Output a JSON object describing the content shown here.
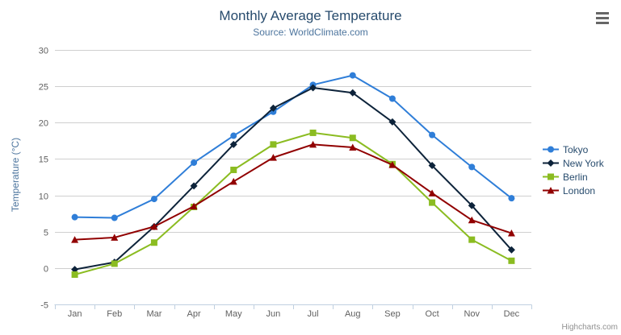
{
  "header": {
    "title": "Monthly Average Temperature",
    "subtitle": "Source: WorldClimate.com"
  },
  "credit": "Highcharts.com",
  "chart_data": {
    "type": "line",
    "title": "Monthly Average Temperature",
    "subtitle": "Source: WorldClimate.com",
    "categories": [
      "Jan",
      "Feb",
      "Mar",
      "Apr",
      "May",
      "Jun",
      "Jul",
      "Aug",
      "Sep",
      "Oct",
      "Nov",
      "Dec"
    ],
    "series": [
      {
        "name": "Tokyo",
        "color": "#2f7ed8",
        "marker": "circle",
        "values": [
          7.0,
          6.9,
          9.5,
          14.5,
          18.2,
          21.5,
          25.2,
          26.5,
          23.3,
          18.3,
          13.9,
          9.6
        ]
      },
      {
        "name": "New York",
        "color": "#0d233a",
        "marker": "diamond",
        "values": [
          -0.2,
          0.8,
          5.7,
          11.3,
          17.0,
          22.0,
          24.8,
          24.1,
          20.1,
          14.1,
          8.6,
          2.5
        ]
      },
      {
        "name": "Berlin",
        "color": "#8bbc21",
        "marker": "square",
        "values": [
          -0.9,
          0.6,
          3.5,
          8.4,
          13.5,
          17.0,
          18.6,
          17.9,
          14.3,
          9.0,
          3.9,
          1.0
        ]
      },
      {
        "name": "London",
        "color": "#910000",
        "marker": "triangle",
        "values": [
          3.9,
          4.2,
          5.7,
          8.5,
          11.9,
          15.2,
          17.0,
          16.6,
          14.2,
          10.3,
          6.6,
          4.8
        ]
      }
    ],
    "xlabel": "",
    "ylabel": "Temperature (°C)",
    "ylim": [
      -5,
      30
    ],
    "ytick_interval": 5,
    "grid": true,
    "legend_position": "right-middle",
    "axis_label_color": "#606060",
    "grid_color": "#cfcfcf",
    "axis_line_color": "#c0d0e0"
  }
}
